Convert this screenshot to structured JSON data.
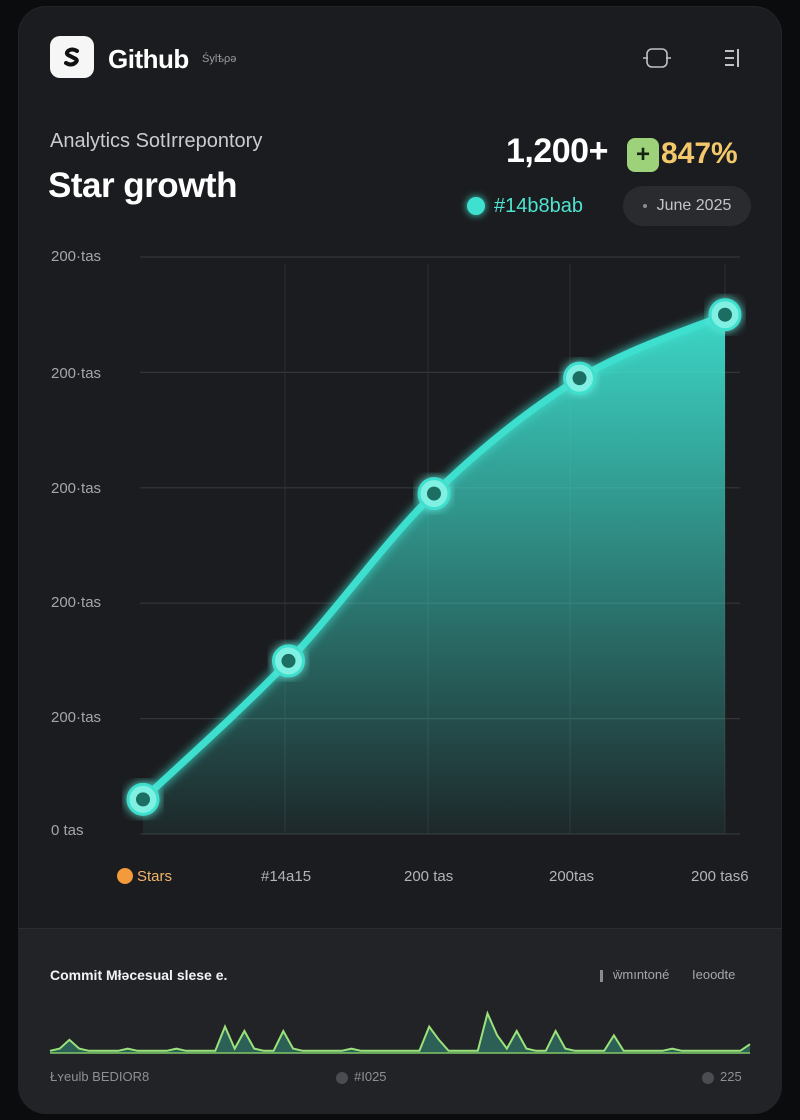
{
  "header": {
    "brand": "Github",
    "brand_sub": "Śylѣρə",
    "icons": [
      "code-icon",
      "menu-icon"
    ]
  },
  "summary": {
    "subtitle": "Analytics SotIrrepontory",
    "title": "Star growth",
    "stat_value": "1,200+",
    "stat_badge": "+",
    "stat_percent": "847%",
    "legend_label": "#14b8bab",
    "date_label": "June 2025"
  },
  "chart_data": {
    "type": "area",
    "y_tick_labels": [
      "200·tas",
      "200·tas",
      "200·tas",
      "200·tas",
      "200·tas",
      "0 tas"
    ],
    "x_tick_labels": [
      "Stars",
      "#14a15",
      "200 tas",
      "200tas",
      "200 tas6"
    ],
    "series": [
      {
        "values": [
          0.06,
          0.3,
          0.59,
          0.79,
          0.9
        ]
      }
    ],
    "ylim": [
      0,
      1
    ],
    "grid": true,
    "colors": {
      "line": "#3ee0cf",
      "legend_dot": "#f39a3a"
    }
  },
  "commits": {
    "title": "Commit Młəcesual slese e.",
    "tag_left": "ẅmıntoné",
    "tag_right": "Ieoodte",
    "footer": [
      "Łʏeulb BEDIOR8",
      "#I025",
      "225"
    ],
    "sparkline": [
      0.05,
      0.1,
      0.3,
      0.1,
      0.05,
      0.05,
      0.05,
      0.05,
      0.1,
      0.05,
      0.05,
      0.05,
      0.05,
      0.1,
      0.05,
      0.05,
      0.05,
      0.05,
      0.6,
      0.1,
      0.5,
      0.1,
      0.05,
      0.05,
      0.5,
      0.1,
      0.05,
      0.05,
      0.05,
      0.05,
      0.05,
      0.1,
      0.05,
      0.05,
      0.05,
      0.05,
      0.05,
      0.05,
      0.05,
      0.6,
      0.3,
      0.05,
      0.05,
      0.05,
      0.05,
      0.9,
      0.4,
      0.1,
      0.5,
      0.1,
      0.05,
      0.05,
      0.5,
      0.1,
      0.05,
      0.05,
      0.05,
      0.05,
      0.4,
      0.05,
      0.05,
      0.05,
      0.05,
      0.05,
      0.1,
      0.05,
      0.05,
      0.05,
      0.05,
      0.05,
      0.05,
      0.05,
      0.2
    ]
  }
}
